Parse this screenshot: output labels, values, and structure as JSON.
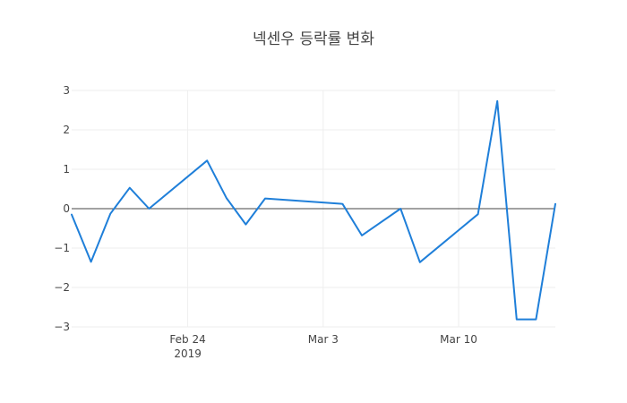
{
  "chart_data": {
    "type": "line",
    "title": "넥센우 등락률 변화",
    "xlabel": "",
    "ylabel": "",
    "x_axis": {
      "type": "date",
      "ticks": [
        {
          "value": "2019-02-24",
          "label": "Feb 24",
          "sublabel": "2019"
        },
        {
          "value": "2019-03-03",
          "label": "Mar 3",
          "sublabel": ""
        },
        {
          "value": "2019-03-10",
          "label": "Mar 10",
          "sublabel": ""
        }
      ],
      "range": [
        "2019-02-18",
        "2019-03-15"
      ]
    },
    "y_axis": {
      "ticks": [
        3,
        2,
        1,
        0,
        -1,
        -2,
        -3
      ],
      "tick_labels": [
        "3",
        "2",
        "1",
        "0",
        "−1",
        "−2",
        "−3"
      ],
      "range": [
        -3,
        3
      ],
      "zeroline": true
    },
    "grid": true,
    "line_color": "#1f7fd9",
    "series": [
      {
        "name": "",
        "x": [
          "2019-02-18",
          "2019-02-19",
          "2019-02-20",
          "2019-02-21",
          "2019-02-22",
          "2019-02-25",
          "2019-02-26",
          "2019-02-27",
          "2019-02-28",
          "2019-03-04",
          "2019-03-05",
          "2019-03-07",
          "2019-03-08",
          "2019-03-11",
          "2019-03-12",
          "2019-03-13",
          "2019-03-14",
          "2019-03-15"
        ],
        "y": [
          -0.15,
          -1.35,
          -0.13,
          0.53,
          0.0,
          1.22,
          0.27,
          -0.4,
          0.26,
          0.12,
          -0.68,
          0.0,
          -1.36,
          -0.14,
          2.73,
          -2.81,
          -2.81,
          0.12
        ]
      }
    ]
  }
}
